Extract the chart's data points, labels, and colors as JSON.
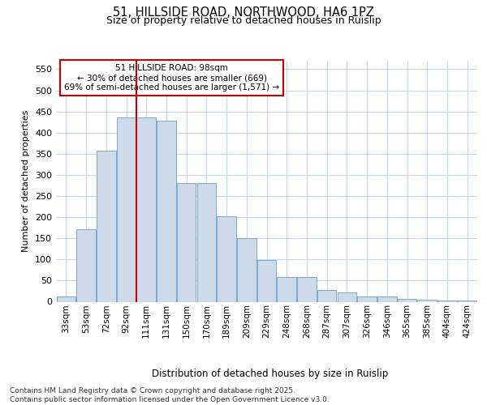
{
  "title_line1": "51, HILLSIDE ROAD, NORTHWOOD, HA6 1PZ",
  "title_line2": "Size of property relative to detached houses in Ruislip",
  "xlabel": "Distribution of detached houses by size in Ruislip",
  "ylabel": "Number of detached properties",
  "categories": [
    "33sqm",
    "53sqm",
    "72sqm",
    "92sqm",
    "111sqm",
    "131sqm",
    "150sqm",
    "170sqm",
    "189sqm",
    "209sqm",
    "229sqm",
    "248sqm",
    "268sqm",
    "287sqm",
    "307sqm",
    "326sqm",
    "346sqm",
    "365sqm",
    "385sqm",
    "404sqm",
    "424sqm"
  ],
  "values": [
    13,
    172,
    357,
    435,
    435,
    428,
    280,
    280,
    202,
    150,
    98,
    58,
    58,
    28,
    22,
    12,
    12,
    6,
    5,
    2,
    3
  ],
  "bar_color": "#ccdaea",
  "bar_edge_color": "#7aaacf",
  "marker_line_color": "#cc0000",
  "marker_after_index": 3,
  "ylim_max": 570,
  "yticks": [
    0,
    50,
    100,
    150,
    200,
    250,
    300,
    350,
    400,
    450,
    500,
    550
  ],
  "annotation_title": "51 HILLSIDE ROAD: 98sqm",
  "annotation_line1": "← 30% of detached houses are smaller (669)",
  "annotation_line2": "69% of semi-detached houses are larger (1,571) →",
  "footer_line1": "Contains HM Land Registry data © Crown copyright and database right 2025.",
  "footer_line2": "Contains public sector information licensed under the Open Government Licence v3.0.",
  "bg_color": "#ffffff",
  "plot_bg_color": "#ffffff",
  "grid_color": "#c5d8ec"
}
